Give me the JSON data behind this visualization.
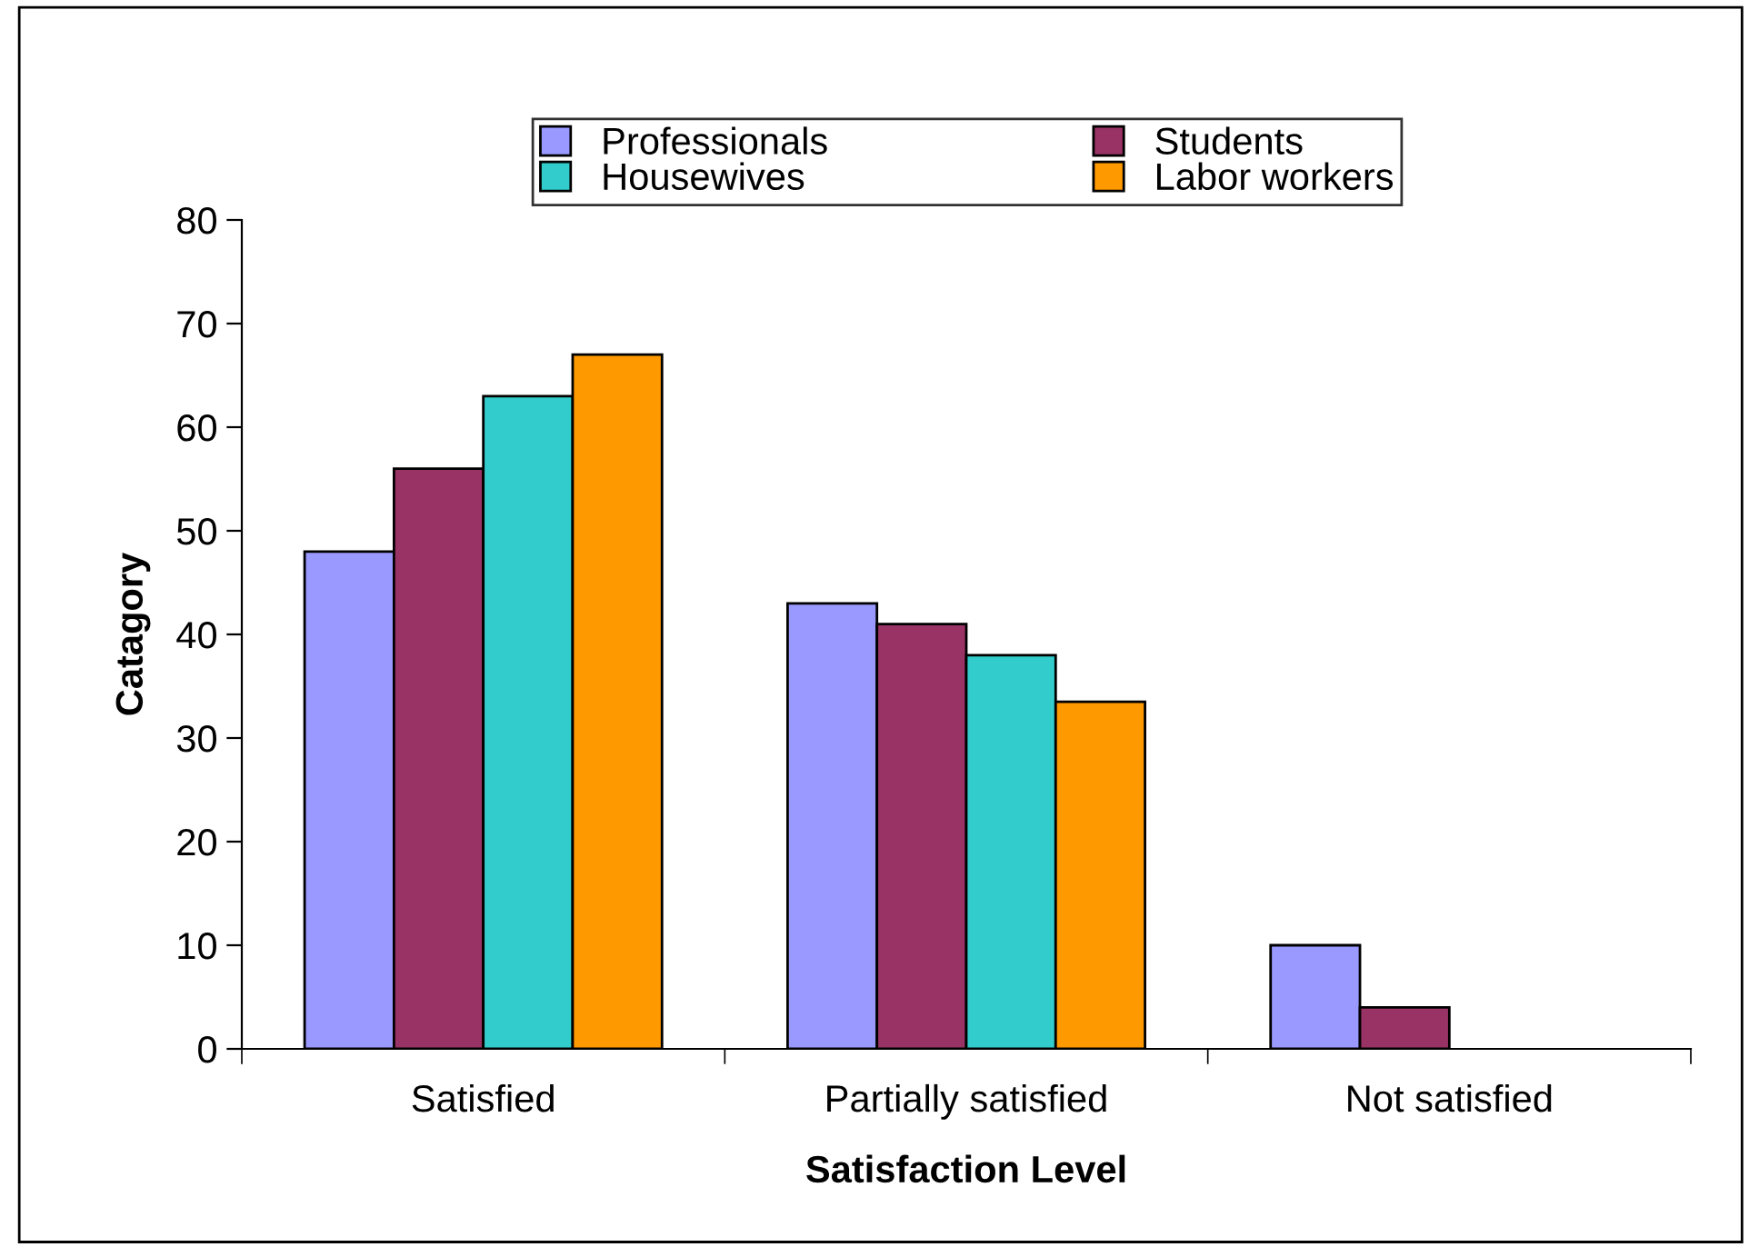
{
  "chart_data": {
    "type": "bar",
    "xlabel": "Satisfaction Level",
    "ylabel": "Catagory",
    "categories": [
      "Satisfied",
      "Partially satisfied",
      "Not satisfied"
    ],
    "series": [
      {
        "name": "Professionals",
        "color": "#9999ff",
        "values": [
          48,
          43,
          10
        ]
      },
      {
        "name": "Students",
        "color": "#993366",
        "values": [
          56,
          41,
          4
        ]
      },
      {
        "name": "Housewives",
        "color": "#33cccc",
        "values": [
          63,
          38,
          null
        ]
      },
      {
        "name": "Labor workers",
        "color": "#ff9900",
        "values": [
          67,
          33.5,
          null
        ]
      }
    ],
    "ylim": [
      0,
      80
    ],
    "yticks": [
      0,
      10,
      20,
      30,
      40,
      50,
      60,
      70,
      80
    ],
    "grid": false,
    "legend": "top"
  }
}
